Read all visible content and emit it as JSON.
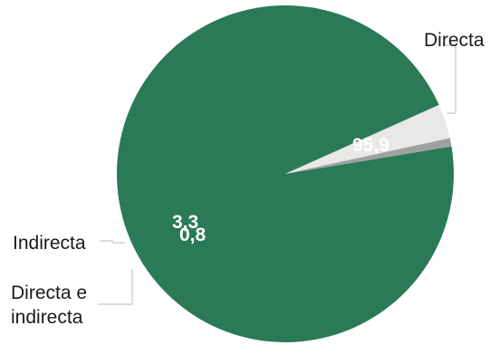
{
  "chart_data": {
    "type": "pie",
    "slices": [
      {
        "label": "Directa",
        "value": 95.9,
        "display": "95,9",
        "color": "#2a7a57"
      },
      {
        "label": "Indirecta",
        "value": 3.3,
        "display": "3,3",
        "color": "#e8e8e8"
      },
      {
        "label": "Directa e indirecta",
        "label_lines": [
          "Directa e",
          "indirecta"
        ],
        "value": 0.8,
        "display": "0,8",
        "color": "#a0a0a0"
      }
    ],
    "legend": "none"
  }
}
